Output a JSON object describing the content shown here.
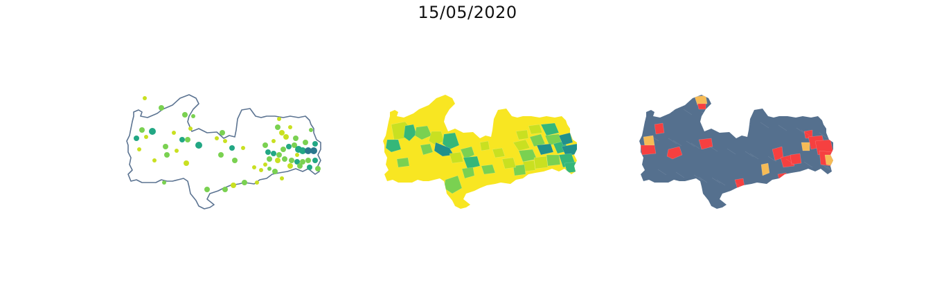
{
  "figure": {
    "title": "15/05/2020"
  },
  "colors": {
    "outline": "#5b7391",
    "dots_low": "#c9e021",
    "dots_mid": "#7ad151",
    "dots_high": "#22a784",
    "dots_top": "#2a788e",
    "choro_base": "#f8e622",
    "choro_1": "#c9e021",
    "choro_2": "#7ad151",
    "choro_3": "#35b779",
    "choro_4": "#21908c",
    "status_base": "#55708e",
    "status_red": "#f64040",
    "status_orange": "#f6bb56"
  },
  "panels": [
    {
      "name": "points",
      "legend": ""
    },
    {
      "name": "choropleth",
      "legend": ""
    },
    {
      "name": "status",
      "legend": ""
    }
  ]
}
